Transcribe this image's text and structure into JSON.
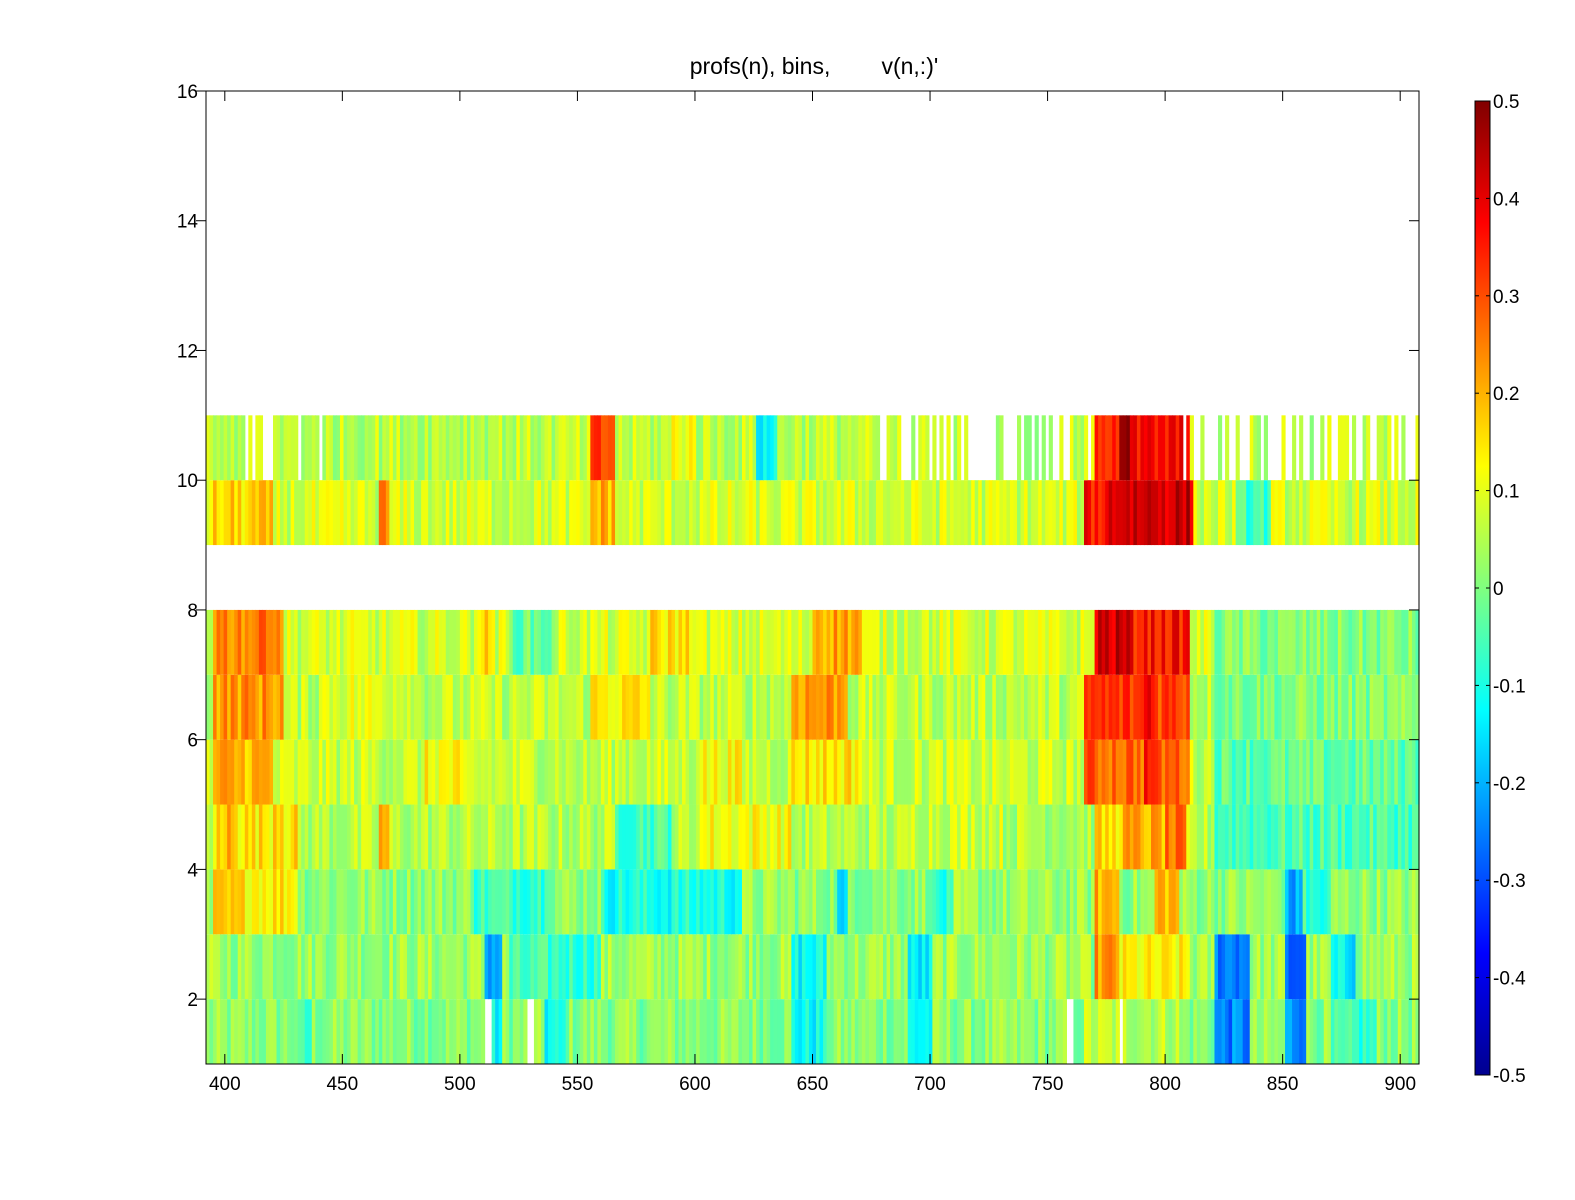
{
  "chart_data": {
    "type": "heatmap",
    "title": "profs(n), bins,        v(n,:)'",
    "xlabel": "",
    "ylabel": "",
    "xlim": [
      392,
      908
    ],
    "ylim": [
      1,
      16
    ],
    "x_ticks": [
      400,
      450,
      500,
      550,
      600,
      650,
      700,
      750,
      800,
      850,
      900
    ],
    "y_ticks": [
      2,
      4,
      6,
      8,
      10,
      12,
      14,
      16
    ],
    "colorbar": {
      "limits": [
        -0.5,
        0.5
      ],
      "ticks": [
        -0.5,
        -0.4,
        -0.3,
        -0.2,
        -0.1,
        0,
        0.1,
        0.2,
        0.3,
        0.4,
        0.5
      ],
      "colormap": "jet",
      "location": "right"
    },
    "grid": false,
    "bins": [
      {
        "y0": 1,
        "y1": 2,
        "base": 0.01,
        "segments": [
          [
            430,
            437,
            -0.08
          ],
          [
            510,
            518,
            -0.13
          ],
          [
            535,
            545,
            -0.12
          ],
          [
            640,
            655,
            -0.12
          ],
          [
            690,
            700,
            -0.12
          ],
          [
            765,
            805,
            0.06
          ],
          [
            820,
            835,
            -0.25
          ],
          [
            850,
            860,
            -0.22
          ],
          [
            870,
            890,
            -0.08
          ]
        ]
      },
      {
        "y0": 2,
        "y1": 3,
        "base": 0.03,
        "segments": [
          [
            510,
            518,
            -0.2
          ],
          [
            520,
            560,
            -0.07
          ],
          [
            640,
            655,
            -0.12
          ],
          [
            690,
            700,
            -0.15
          ],
          [
            770,
            780,
            0.22
          ],
          [
            780,
            810,
            0.12
          ],
          [
            820,
            835,
            -0.24
          ],
          [
            850,
            860,
            -0.28
          ],
          [
            870,
            880,
            -0.14
          ]
        ]
      },
      {
        "y0": 3,
        "y1": 4,
        "base": 0.02,
        "segments": [
          [
            395,
            430,
            0.15
          ],
          [
            505,
            535,
            -0.06
          ],
          [
            560,
            620,
            -0.1
          ],
          [
            660,
            665,
            -0.2
          ],
          [
            700,
            710,
            -0.1
          ],
          [
            770,
            780,
            0.2
          ],
          [
            795,
            805,
            0.2
          ],
          [
            850,
            858,
            -0.22
          ],
          [
            860,
            870,
            -0.1
          ]
        ]
      },
      {
        "y0": 4,
        "y1": 5,
        "base": 0.05,
        "segments": [
          [
            395,
            430,
            0.15
          ],
          [
            400,
            405,
            0.22
          ],
          [
            420,
            425,
            0.2
          ],
          [
            465,
            470,
            0.2
          ],
          [
            565,
            590,
            -0.05
          ],
          [
            600,
            640,
            0.12
          ],
          [
            690,
            730,
            0.08
          ],
          [
            770,
            780,
            0.15
          ],
          [
            780,
            800,
            0.2
          ],
          [
            800,
            808,
            0.25
          ],
          [
            820,
            908,
            -0.05
          ]
        ]
      },
      {
        "y0": 5,
        "y1": 6,
        "base": 0.07,
        "segments": [
          [
            395,
            420,
            0.2
          ],
          [
            485,
            500,
            0.12
          ],
          [
            545,
            560,
            0.05
          ],
          [
            600,
            620,
            0.12
          ],
          [
            640,
            670,
            0.15
          ],
          [
            765,
            810,
            0.28
          ],
          [
            790,
            795,
            0.35
          ],
          [
            820,
            908,
            -0.03
          ]
        ]
      },
      {
        "y0": 6,
        "y1": 7,
        "base": 0.06,
        "segments": [
          [
            395,
            425,
            0.23
          ],
          [
            440,
            480,
            0.1
          ],
          [
            555,
            580,
            0.14
          ],
          [
            640,
            665,
            0.23
          ],
          [
            765,
            810,
            0.32
          ],
          [
            790,
            795,
            0.4
          ],
          [
            820,
            908,
            0.0
          ]
        ]
      },
      {
        "y0": 7,
        "y1": 8,
        "base": 0.08,
        "segments": [
          [
            395,
            425,
            0.25
          ],
          [
            415,
            420,
            0.3
          ],
          [
            505,
            515,
            0.15
          ],
          [
            520,
            540,
            -0.02
          ],
          [
            580,
            600,
            0.15
          ],
          [
            650,
            670,
            0.22
          ],
          [
            770,
            785,
            0.42
          ],
          [
            785,
            810,
            0.36
          ],
          [
            820,
            908,
            0.0
          ]
        ]
      },
      {
        "y0": 9,
        "y1": 10,
        "base": 0.08,
        "segments": [
          [
            395,
            420,
            0.16
          ],
          [
            465,
            470,
            0.23
          ],
          [
            555,
            565,
            0.2
          ],
          [
            765,
            775,
            0.36
          ],
          [
            775,
            812,
            0.43
          ],
          [
            830,
            845,
            -0.06
          ]
        ]
      },
      {
        "y0": 10,
        "y1": 11,
        "base": 0.06,
        "sparse_edges": [
          [
            392,
            445
          ],
          [
            675,
            770
          ],
          [
            805,
            908
          ]
        ],
        "segments": [
          [
            555,
            565,
            0.3
          ],
          [
            590,
            600,
            0.12
          ],
          [
            625,
            635,
            -0.12
          ],
          [
            770,
            810,
            0.36
          ],
          [
            780,
            785,
            0.5
          ]
        ]
      }
    ]
  }
}
